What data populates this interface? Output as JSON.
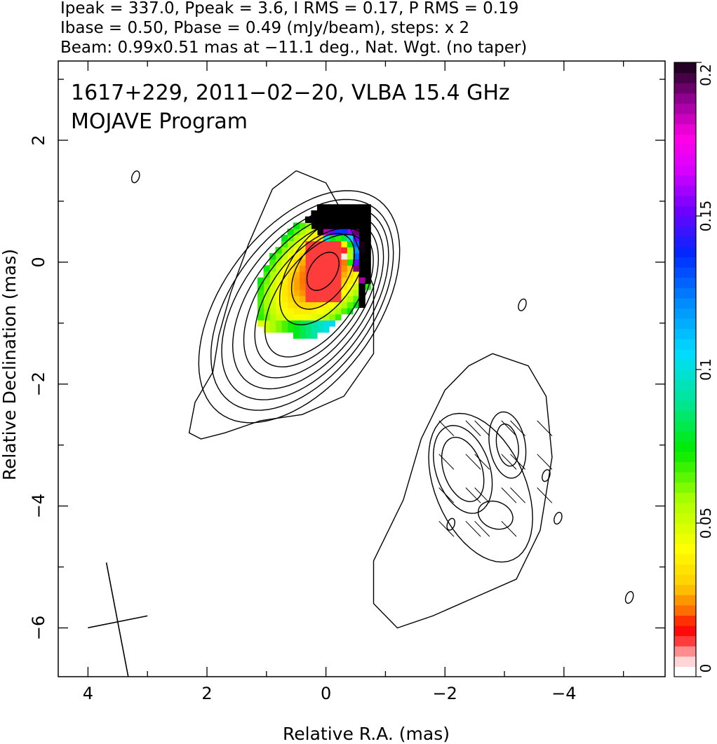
{
  "header": {
    "line1": "Ipeak = 337.0, Ppeak = 3.6, I RMS = 0.17, P RMS = 0.19",
    "line2": "Ibase = 0.50, Pbase = 0.49 (mJy/beam), steps: x 2",
    "line3": "Beam: 0.99x0.51 mas at −11.1 deg., Nat. Wgt. (no taper)"
  },
  "annotation": {
    "line1": "1617+229, 2011−02−20, VLBA 15.4 GHz",
    "line2": "MOJAVE Program"
  },
  "chart_data": {
    "type": "heatmap",
    "xlabel": "Relative R.A. (mas)",
    "ylabel": "Relative Declination (mas)",
    "xlim": [
      4.5,
      -5.7
    ],
    "ylim": [
      -6.8,
      3.3
    ],
    "x_ticks": [
      4,
      2,
      0,
      -2,
      -4
    ],
    "x_tick_labels": [
      "4",
      "2",
      "0",
      "−2",
      "−4"
    ],
    "y_ticks": [
      2,
      0,
      -2,
      -4,
      -6
    ],
    "y_tick_labels": [
      "2",
      "0",
      "−2",
      "−4",
      "−6"
    ],
    "colorbar": {
      "range": [
        0,
        0.2
      ],
      "ticks": [
        0,
        0.05,
        0.1,
        0.15,
        0.2
      ],
      "tick_labels": [
        "0",
        "0.05",
        "0.1",
        "0.15",
        "0.2"
      ]
    },
    "contour_levels_note": "Ibase = 0.50 mJy/beam, steps x 2",
    "beam": {
      "major_mas": 0.99,
      "minor_mas": 0.51,
      "pa_deg": -11.1
    },
    "core": {
      "ra": 0.05,
      "dec": -0.1,
      "ipeak_mjy": 337.0
    },
    "jet_component": {
      "ra": -2.6,
      "dec": -3.7
    }
  },
  "colors": {
    "axis": "#000000",
    "background": "#ffffff"
  }
}
